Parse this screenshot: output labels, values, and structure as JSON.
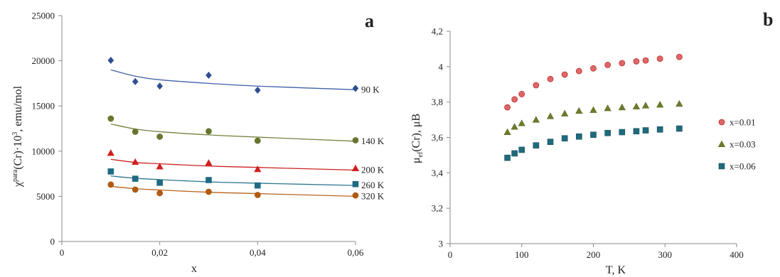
{
  "chart_data": [
    {
      "type": "scatter",
      "panel": "a",
      "xlabel": "x",
      "ylabel": "χpara(Cr)·10³, emu/mol",
      "ylabel_parts": {
        "chi": "χ",
        "sup": "para",
        "rest": "(Cr)·10",
        "exp": "3",
        "unit": ", emu/mol"
      },
      "xlim": [
        0,
        0.06
      ],
      "ylim": [
        0,
        25000
      ],
      "xticks": [
        0,
        0.02,
        0.04,
        0.06
      ],
      "xtick_labels": [
        "0",
        "0,02",
        "0,04",
        "0,06"
      ],
      "yticks": [
        0,
        5000,
        10000,
        15000,
        20000,
        25000
      ],
      "ytick_labels": [
        "0",
        "5000",
        "10000",
        "15000",
        "20000",
        "25000"
      ],
      "grid": false,
      "series": [
        {
          "name": "90 K",
          "marker": "diamond",
          "color": "#2f4d92",
          "line_color": "#3f62a8",
          "x": [
            0.01,
            0.015,
            0.02,
            0.03,
            0.04,
            0.06
          ],
          "values": [
            20050,
            17700,
            17200,
            18400,
            16750,
            16950
          ],
          "fit": [
            19000,
            18300,
            17900,
            17500,
            17200,
            16800
          ]
        },
        {
          "name": "140 K",
          "marker": "circle",
          "color": "#66762e",
          "line_color": "#74813c",
          "x": [
            0.01,
            0.015,
            0.02,
            0.03,
            0.04,
            0.06
          ],
          "values": [
            13600,
            12150,
            11600,
            12200,
            11150,
            11200
          ],
          "fit": [
            13000,
            12450,
            12150,
            11800,
            11550,
            11100
          ]
        },
        {
          "name": "200 K",
          "marker": "triangle",
          "color": "#d11f1f",
          "line_color": "#cc2222",
          "x": [
            0.01,
            0.015,
            0.02,
            0.03,
            0.04,
            0.06
          ],
          "values": [
            9800,
            8800,
            8300,
            8700,
            8000,
            8100
          ],
          "fit": [
            9100,
            8750,
            8600,
            8350,
            8200,
            7900
          ]
        },
        {
          "name": "260 K",
          "marker": "square",
          "color": "#1f6a84",
          "line_color": "#2e7891",
          "x": [
            0.01,
            0.015,
            0.02,
            0.03,
            0.04,
            0.06
          ],
          "values": [
            7750,
            6950,
            6500,
            6800,
            6200,
            6350
          ],
          "fit": [
            7250,
            7000,
            6850,
            6600,
            6450,
            6200
          ]
        },
        {
          "name": "320 K",
          "marker": "circle",
          "color": "#b05a13",
          "line_color": "#b8651e",
          "x": [
            0.01,
            0.015,
            0.02,
            0.03,
            0.04,
            0.06
          ],
          "values": [
            6300,
            5750,
            5350,
            5500,
            5150,
            5100
          ],
          "fit": [
            6100,
            5850,
            5700,
            5450,
            5300,
            5000
          ]
        }
      ]
    },
    {
      "type": "scatter",
      "panel": "b",
      "xlabel": "T, K",
      "ylabel": "μef(Cr), μB",
      "ylabel_parts": {
        "mu": "μ",
        "sub": "ef",
        "rest": "(Cr), μB"
      },
      "xlim": [
        0,
        400
      ],
      "ylim": [
        3,
        4.2
      ],
      "xticks": [
        0,
        100,
        200,
        300,
        400
      ],
      "xtick_labels": [
        "0",
        "100",
        "200",
        "300",
        "400"
      ],
      "yticks": [
        3,
        3.2,
        3.4,
        3.6,
        3.8,
        4,
        4.2
      ],
      "ytick_labels": [
        "3",
        "3,2",
        "3,4",
        "3,6",
        "3,8",
        "4",
        "4,2"
      ],
      "grid": false,
      "legend_position": "right",
      "series": [
        {
          "name": "x=0.01",
          "marker": "circle",
          "color": "#e06666",
          "stroke": "#b83232",
          "x": [
            80,
            90,
            100,
            120,
            140,
            160,
            180,
            200,
            220,
            240,
            260,
            273,
            293,
            320
          ],
          "values": [
            3.77,
            3.815,
            3.845,
            3.895,
            3.93,
            3.955,
            3.975,
            3.99,
            4.01,
            4.02,
            4.03,
            4.035,
            4.045,
            4.055
          ]
        },
        {
          "name": "x=0.03",
          "marker": "triangle",
          "color": "#6b7d2c",
          "stroke": "#5a6a22",
          "x": [
            80,
            90,
            100,
            120,
            140,
            160,
            180,
            200,
            220,
            240,
            260,
            273,
            293,
            320
          ],
          "values": [
            3.63,
            3.66,
            3.68,
            3.7,
            3.72,
            3.735,
            3.75,
            3.755,
            3.765,
            3.77,
            3.775,
            3.78,
            3.785,
            3.79
          ]
        },
        {
          "name": "x=0.06",
          "marker": "square",
          "color": "#1f6a7c",
          "stroke": "#174f5d",
          "x": [
            80,
            90,
            100,
            120,
            140,
            160,
            180,
            200,
            220,
            240,
            260,
            273,
            293,
            320
          ],
          "values": [
            3.485,
            3.51,
            3.53,
            3.555,
            3.575,
            3.595,
            3.605,
            3.615,
            3.625,
            3.63,
            3.635,
            3.64,
            3.645,
            3.65
          ]
        }
      ]
    }
  ]
}
